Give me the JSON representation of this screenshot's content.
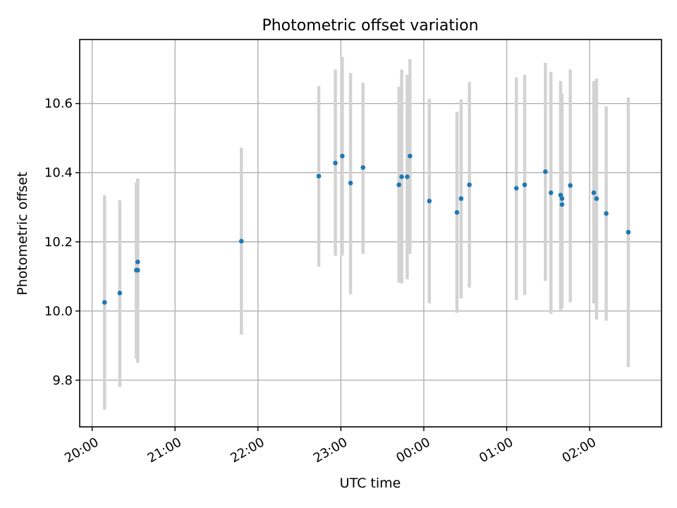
{
  "chart_data": {
    "type": "scatter",
    "title": "Photometric offset variation",
    "xlabel": "UTC time",
    "ylabel": "Photometric offset",
    "x_ticks": [
      "20:00",
      "21:00",
      "22:00",
      "23:00",
      "00:00",
      "01:00",
      "02:00"
    ],
    "y_ticks": [
      "9.8",
      "10.0",
      "10.2",
      "10.4",
      "10.6"
    ],
    "x_range": [
      "19:51",
      "02:52"
    ],
    "ylim": [
      9.665,
      10.785
    ],
    "grid": true,
    "point_color": "#1f77b4",
    "errorbar_color": "#d3d3d3",
    "points": [
      {
        "x": "20:09",
        "y": 10.025,
        "low": 9.715,
        "high": 10.335
      },
      {
        "x": "20:20",
        "y": 10.052,
        "low": 9.78,
        "high": 10.32
      },
      {
        "x": "20:32",
        "y": 10.118,
        "low": 9.862,
        "high": 10.372
      },
      {
        "x": "20:33",
        "y": 10.142,
        "low": 9.855,
        "high": 10.383
      },
      {
        "x": "20:33",
        "y": 10.118,
        "low": 9.85,
        "high": 10.383
      },
      {
        "x": "21:48",
        "y": 10.202,
        "low": 9.932,
        "high": 10.472
      },
      {
        "x": "22:44",
        "y": 10.39,
        "low": 10.128,
        "high": 10.65
      },
      {
        "x": "22:56",
        "y": 10.428,
        "low": 10.16,
        "high": 10.698
      },
      {
        "x": "23:01",
        "y": 10.448,
        "low": 10.16,
        "high": 10.735
      },
      {
        "x": "23:07",
        "y": 10.37,
        "low": 10.048,
        "high": 10.688
      },
      {
        "x": "23:16",
        "y": 10.415,
        "low": 10.165,
        "high": 10.66
      },
      {
        "x": "23:42",
        "y": 10.365,
        "low": 10.082,
        "high": 10.648
      },
      {
        "x": "23:44",
        "y": 10.388,
        "low": 10.08,
        "high": 10.698
      },
      {
        "x": "23:48",
        "y": 10.388,
        "low": 10.092,
        "high": 10.683
      },
      {
        "x": "23:50",
        "y": 10.448,
        "low": 10.165,
        "high": 10.728
      },
      {
        "x": "00:04",
        "y": 10.318,
        "low": 10.022,
        "high": 10.613
      },
      {
        "x": "00:24",
        "y": 10.285,
        "low": 9.995,
        "high": 10.576
      },
      {
        "x": "00:27",
        "y": 10.325,
        "low": 10.036,
        "high": 10.612
      },
      {
        "x": "00:33",
        "y": 10.365,
        "low": 10.068,
        "high": 10.662
      },
      {
        "x": "01:07",
        "y": 10.355,
        "low": 10.032,
        "high": 10.675
      },
      {
        "x": "01:13",
        "y": 10.365,
        "low": 10.046,
        "high": 10.683
      },
      {
        "x": "01:28",
        "y": 10.403,
        "low": 10.087,
        "high": 10.718
      },
      {
        "x": "01:32",
        "y": 10.342,
        "low": 9.992,
        "high": 10.692
      },
      {
        "x": "01:39",
        "y": 10.335,
        "low": 10.002,
        "high": 10.665
      },
      {
        "x": "01:40",
        "y": 10.308,
        "low": 10.008,
        "high": 10.628
      },
      {
        "x": "01:40",
        "y": 10.325,
        "low": 10.022,
        "high": 10.62
      },
      {
        "x": "01:46",
        "y": 10.363,
        "low": 10.025,
        "high": 10.698
      },
      {
        "x": "02:03",
        "y": 10.342,
        "low": 10.022,
        "high": 10.665
      },
      {
        "x": "02:05",
        "y": 10.325,
        "low": 9.975,
        "high": 10.672
      },
      {
        "x": "02:12",
        "y": 10.282,
        "low": 9.972,
        "high": 10.592
      },
      {
        "x": "02:28",
        "y": 10.228,
        "low": 9.838,
        "high": 10.618
      }
    ]
  }
}
